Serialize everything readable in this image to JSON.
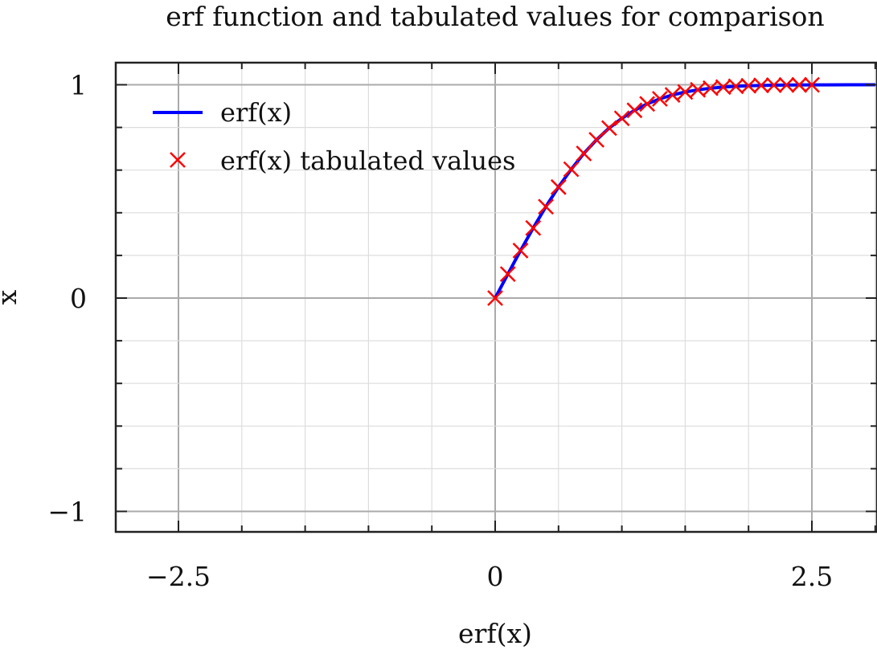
{
  "chart_data": {
    "type": "line",
    "title": "erf function and tabulated values for comparison",
    "xlabel": "erf(x)",
    "ylabel": "x",
    "xlim": [
      -3.0,
      3.0
    ],
    "ylim": [
      -1.1,
      1.1
    ],
    "x_ticks": [
      {
        "value": -2.5,
        "label": "−2.5"
      },
      {
        "value": 0,
        "label": "0"
      },
      {
        "value": 2.5,
        "label": "2.5"
      }
    ],
    "y_ticks": [
      {
        "value": 1,
        "label": "1"
      },
      {
        "value": 0,
        "label": "0"
      },
      {
        "value": -1,
        "label": "−1"
      }
    ],
    "x_minor_step": 0.5,
    "y_minor_step": 0.2,
    "grid": true,
    "legend_position": "top-left",
    "series": [
      {
        "name": "erf(x)",
        "style": "line",
        "color": "#0000ff",
        "x": [
          0,
          0.1,
          0.2,
          0.3,
          0.4,
          0.5,
          0.6,
          0.7,
          0.8,
          0.9,
          1.0,
          1.1,
          1.2,
          1.3,
          1.4,
          1.5,
          1.6,
          1.7,
          1.8,
          1.9,
          2.0,
          2.2,
          2.4,
          2.6,
          2.8,
          3.0
        ],
        "y": [
          0,
          0.1125,
          0.2227,
          0.3286,
          0.4284,
          0.5205,
          0.6039,
          0.6778,
          0.7421,
          0.7969,
          0.8427,
          0.8802,
          0.9103,
          0.934,
          0.9523,
          0.9661,
          0.9763,
          0.9838,
          0.9891,
          0.9928,
          0.9953,
          0.9981,
          0.9993,
          0.9998,
          0.9999,
          1.0
        ]
      },
      {
        "name": "erf(x) tabulated values",
        "style": "markers",
        "marker": "x",
        "color": "#ff0000",
        "x": [
          0,
          0.1,
          0.2,
          0.3,
          0.4,
          0.5,
          0.6,
          0.7,
          0.8,
          0.9,
          1.0,
          1.1,
          1.2,
          1.3,
          1.4,
          1.5,
          1.6,
          1.7,
          1.8,
          1.9,
          2.0,
          2.1,
          2.2,
          2.3,
          2.4,
          2.5
        ],
        "y": [
          0,
          0.1125,
          0.2227,
          0.3286,
          0.4284,
          0.5205,
          0.6039,
          0.6778,
          0.7421,
          0.7969,
          0.8427,
          0.8802,
          0.9103,
          0.934,
          0.9523,
          0.9661,
          0.9763,
          0.9838,
          0.9891,
          0.9928,
          0.9953,
          0.997,
          0.9981,
          0.9989,
          0.9993,
          0.9996
        ]
      }
    ]
  }
}
